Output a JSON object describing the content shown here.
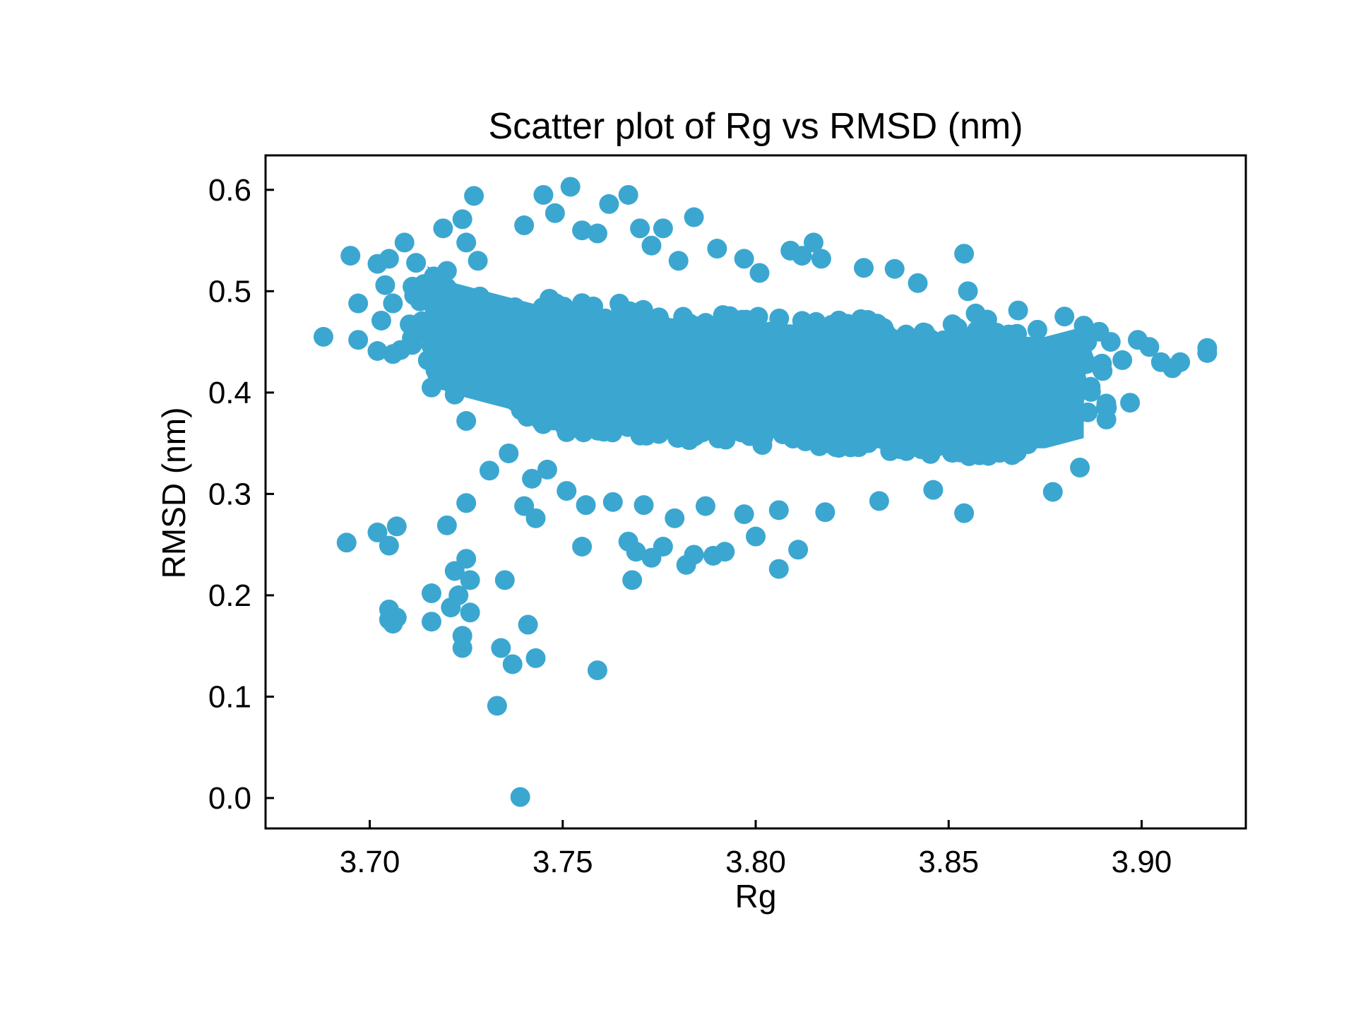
{
  "colors": {
    "marker": "#3ba7d1",
    "axes": "#000000",
    "background": "#ffffff"
  },
  "chart_data": {
    "type": "scatter",
    "title": "Scatter plot of Rg vs RMSD (nm)",
    "xlabel": "Rg",
    "ylabel": "RMSD (nm)",
    "xlim": [
      3.673,
      3.927
    ],
    "ylim": [
      -0.03,
      0.634
    ],
    "xticks": [
      3.7,
      3.75,
      3.8,
      3.85,
      3.9
    ],
    "xtick_labels": [
      "3.70",
      "3.75",
      "3.80",
      "3.85",
      "3.90"
    ],
    "yticks": [
      0.0,
      0.1,
      0.2,
      0.3,
      0.4,
      0.5,
      0.6
    ],
    "ytick_labels": [
      "0.0",
      "0.1",
      "0.2",
      "0.3",
      "0.4",
      "0.5",
      "0.6"
    ],
    "grid": false,
    "series": [
      {
        "name": "Rg vs RMSD",
        "marker": "circle",
        "points": [
          [
            3.688,
            0.455
          ],
          [
            3.695,
            0.535
          ],
          [
            3.697,
            0.488
          ],
          [
            3.697,
            0.452
          ],
          [
            3.702,
            0.527
          ],
          [
            3.703,
            0.471
          ],
          [
            3.704,
            0.506
          ],
          [
            3.705,
            0.532
          ],
          [
            3.706,
            0.488
          ],
          [
            3.702,
            0.441
          ],
          [
            3.706,
            0.438
          ],
          [
            3.709,
            0.548
          ],
          [
            3.708,
            0.442
          ],
          [
            3.711,
            0.447
          ],
          [
            3.712,
            0.528
          ],
          [
            3.713,
            0.49
          ],
          [
            3.714,
            0.507
          ],
          [
            3.716,
            0.405
          ],
          [
            3.719,
            0.562
          ],
          [
            3.72,
            0.52
          ],
          [
            3.722,
            0.398
          ],
          [
            3.724,
            0.571
          ],
          [
            3.725,
            0.548
          ],
          [
            3.725,
            0.372
          ],
          [
            3.727,
            0.594
          ],
          [
            3.728,
            0.53
          ],
          [
            3.74,
            0.565
          ],
          [
            3.745,
            0.595
          ],
          [
            3.748,
            0.577
          ],
          [
            3.752,
            0.603
          ],
          [
            3.755,
            0.56
          ],
          [
            3.759,
            0.557
          ],
          [
            3.762,
            0.586
          ],
          [
            3.767,
            0.595
          ],
          [
            3.77,
            0.562
          ],
          [
            3.773,
            0.545
          ],
          [
            3.776,
            0.562
          ],
          [
            3.78,
            0.53
          ],
          [
            3.784,
            0.573
          ],
          [
            3.79,
            0.542
          ],
          [
            3.797,
            0.532
          ],
          [
            3.801,
            0.518
          ],
          [
            3.809,
            0.54
          ],
          [
            3.812,
            0.535
          ],
          [
            3.815,
            0.548
          ],
          [
            3.817,
            0.532
          ],
          [
            3.828,
            0.523
          ],
          [
            3.836,
            0.522
          ],
          [
            3.842,
            0.508
          ],
          [
            3.854,
            0.537
          ],
          [
            3.855,
            0.5
          ],
          [
            3.857,
            0.478
          ],
          [
            3.86,
            0.472
          ],
          [
            3.868,
            0.481
          ],
          [
            3.873,
            0.462
          ],
          [
            3.88,
            0.475
          ],
          [
            3.885,
            0.466
          ],
          [
            3.889,
            0.46
          ],
          [
            3.892,
            0.45
          ],
          [
            3.895,
            0.432
          ],
          [
            3.899,
            0.452
          ],
          [
            3.902,
            0.445
          ],
          [
            3.905,
            0.43
          ],
          [
            3.908,
            0.424
          ],
          [
            3.91,
            0.43
          ],
          [
            3.917,
            0.444
          ],
          [
            3.917,
            0.439
          ],
          [
            3.897,
            0.39
          ],
          [
            3.891,
            0.385
          ],
          [
            3.884,
            0.326
          ],
          [
            3.877,
            0.302
          ],
          [
            3.854,
            0.281
          ],
          [
            3.846,
            0.304
          ],
          [
            3.832,
            0.293
          ],
          [
            3.818,
            0.282
          ],
          [
            3.811,
            0.245
          ],
          [
            3.806,
            0.226
          ],
          [
            3.806,
            0.284
          ],
          [
            3.8,
            0.258
          ],
          [
            3.797,
            0.28
          ],
          [
            3.792,
            0.243
          ],
          [
            3.789,
            0.239
          ],
          [
            3.787,
            0.288
          ],
          [
            3.784,
            0.24
          ],
          [
            3.782,
            0.23
          ],
          [
            3.779,
            0.276
          ],
          [
            3.776,
            0.248
          ],
          [
            3.773,
            0.237
          ],
          [
            3.769,
            0.243
          ],
          [
            3.768,
            0.215
          ],
          [
            3.767,
            0.253
          ],
          [
            3.771,
            0.289
          ],
          [
            3.763,
            0.292
          ],
          [
            3.759,
            0.126
          ],
          [
            3.756,
            0.289
          ],
          [
            3.755,
            0.248
          ],
          [
            3.751,
            0.303
          ],
          [
            3.746,
            0.324
          ],
          [
            3.743,
            0.276
          ],
          [
            3.742,
            0.315
          ],
          [
            3.74,
            0.288
          ],
          [
            3.741,
            0.171
          ],
          [
            3.743,
            0.138
          ],
          [
            3.736,
            0.34
          ],
          [
            3.737,
            0.132
          ],
          [
            3.735,
            0.215
          ],
          [
            3.734,
            0.148
          ],
          [
            3.733,
            0.091
          ],
          [
            3.739,
            0.001
          ],
          [
            3.731,
            0.323
          ],
          [
            3.725,
            0.291
          ],
          [
            3.725,
            0.236
          ],
          [
            3.726,
            0.215
          ],
          [
            3.726,
            0.183
          ],
          [
            3.724,
            0.16
          ],
          [
            3.724,
            0.148
          ],
          [
            3.723,
            0.2
          ],
          [
            3.722,
            0.224
          ],
          [
            3.721,
            0.188
          ],
          [
            3.72,
            0.269
          ],
          [
            3.716,
            0.202
          ],
          [
            3.716,
            0.174
          ],
          [
            3.707,
            0.268
          ],
          [
            3.705,
            0.186
          ],
          [
            3.707,
            0.178
          ],
          [
            3.705,
            0.249
          ],
          [
            3.702,
            0.262
          ],
          [
            3.694,
            0.252
          ],
          [
            3.705,
            0.176
          ],
          [
            3.706,
            0.172
          ]
        ],
        "cluster_segments": [
          [
            3.715,
            0.47
          ],
          [
            3.72,
            0.455
          ],
          [
            3.725,
            0.45
          ],
          [
            3.73,
            0.445
          ],
          [
            3.735,
            0.44
          ],
          [
            3.74,
            0.435
          ],
          [
            3.745,
            0.43
          ],
          [
            3.75,
            0.428
          ],
          [
            3.755,
            0.425
          ],
          [
            3.76,
            0.423
          ],
          [
            3.765,
            0.421
          ],
          [
            3.77,
            0.42
          ],
          [
            3.775,
            0.419
          ],
          [
            3.78,
            0.418
          ],
          [
            3.785,
            0.417
          ],
          [
            3.79,
            0.416
          ],
          [
            3.795,
            0.415
          ],
          [
            3.8,
            0.414
          ],
          [
            3.805,
            0.413
          ],
          [
            3.81,
            0.412
          ],
          [
            3.815,
            0.411
          ],
          [
            3.82,
            0.41
          ],
          [
            3.825,
            0.409
          ],
          [
            3.83,
            0.408
          ],
          [
            3.835,
            0.407
          ],
          [
            3.84,
            0.406
          ],
          [
            3.845,
            0.405
          ],
          [
            3.85,
            0.404
          ],
          [
            3.855,
            0.403
          ],
          [
            3.86,
            0.402
          ],
          [
            3.865,
            0.401
          ],
          [
            3.87,
            0.4
          ],
          [
            3.875,
            0.4
          ],
          [
            3.88,
            0.405
          ],
          [
            3.885,
            0.41
          ]
        ]
      }
    ]
  }
}
